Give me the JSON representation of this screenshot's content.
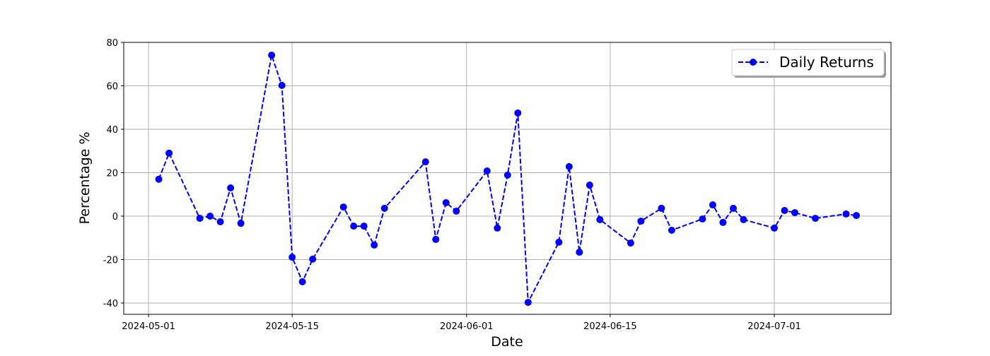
{
  "chart_data": {
    "type": "line",
    "title": "",
    "xlabel": "Date",
    "ylabel": "Percentage %",
    "xlim": [
      "2024-04-28T14:00",
      "2024-07-12T09:00"
    ],
    "ylim": [
      -45.2,
      80
    ],
    "grid": true,
    "legend_placement": "top-right",
    "xticks": [
      "2024-05-01",
      "2024-05-15",
      "2024-06-01",
      "2024-06-15",
      "2024-07-01"
    ],
    "yticks": [
      -40,
      -20,
      0,
      20,
      40,
      60,
      80
    ],
    "series": [
      {
        "name": "Daily Returns",
        "color": "#0000ff",
        "linestyle": "dashed",
        "marker": "circle",
        "x": [
          "2024-05-02",
          "2024-05-03",
          "2024-05-06",
          "2024-05-07",
          "2024-05-08",
          "2024-05-09",
          "2024-05-10",
          "2024-05-13",
          "2024-05-14",
          "2024-05-15",
          "2024-05-16",
          "2024-05-17",
          "2024-05-20",
          "2024-05-21",
          "2024-05-22",
          "2024-05-23",
          "2024-05-24",
          "2024-05-28",
          "2024-05-29",
          "2024-05-30",
          "2024-05-31",
          "2024-06-03",
          "2024-06-04",
          "2024-06-05",
          "2024-06-06",
          "2024-06-07",
          "2024-06-10",
          "2024-06-11",
          "2024-06-12",
          "2024-06-13",
          "2024-06-14",
          "2024-06-17",
          "2024-06-18",
          "2024-06-20",
          "2024-06-21",
          "2024-06-24",
          "2024-06-25",
          "2024-06-26",
          "2024-06-27",
          "2024-06-28",
          "2024-07-01",
          "2024-07-02",
          "2024-07-03",
          "2024-07-05",
          "2024-07-08",
          "2024-07-09"
        ],
        "y": [
          17,
          29,
          -1,
          0,
          -2.6,
          13,
          -3.3,
          74.1,
          60.2,
          -18.9,
          -30.2,
          -19.8,
          4.2,
          -4.6,
          -4.6,
          -13.3,
          3.6,
          25,
          -10.7,
          6.2,
          2.3,
          20.8,
          -5.5,
          18.9,
          47.5,
          -39.7,
          -12,
          22.8,
          -16.6,
          14.3,
          -1.6,
          -12.4,
          -2.3,
          3.6,
          -6.5,
          -1.3,
          5.2,
          -2.9,
          3.6,
          -1.6,
          -5.5,
          2.6,
          1.6,
          -1,
          1,
          0.3
        ]
      }
    ]
  }
}
